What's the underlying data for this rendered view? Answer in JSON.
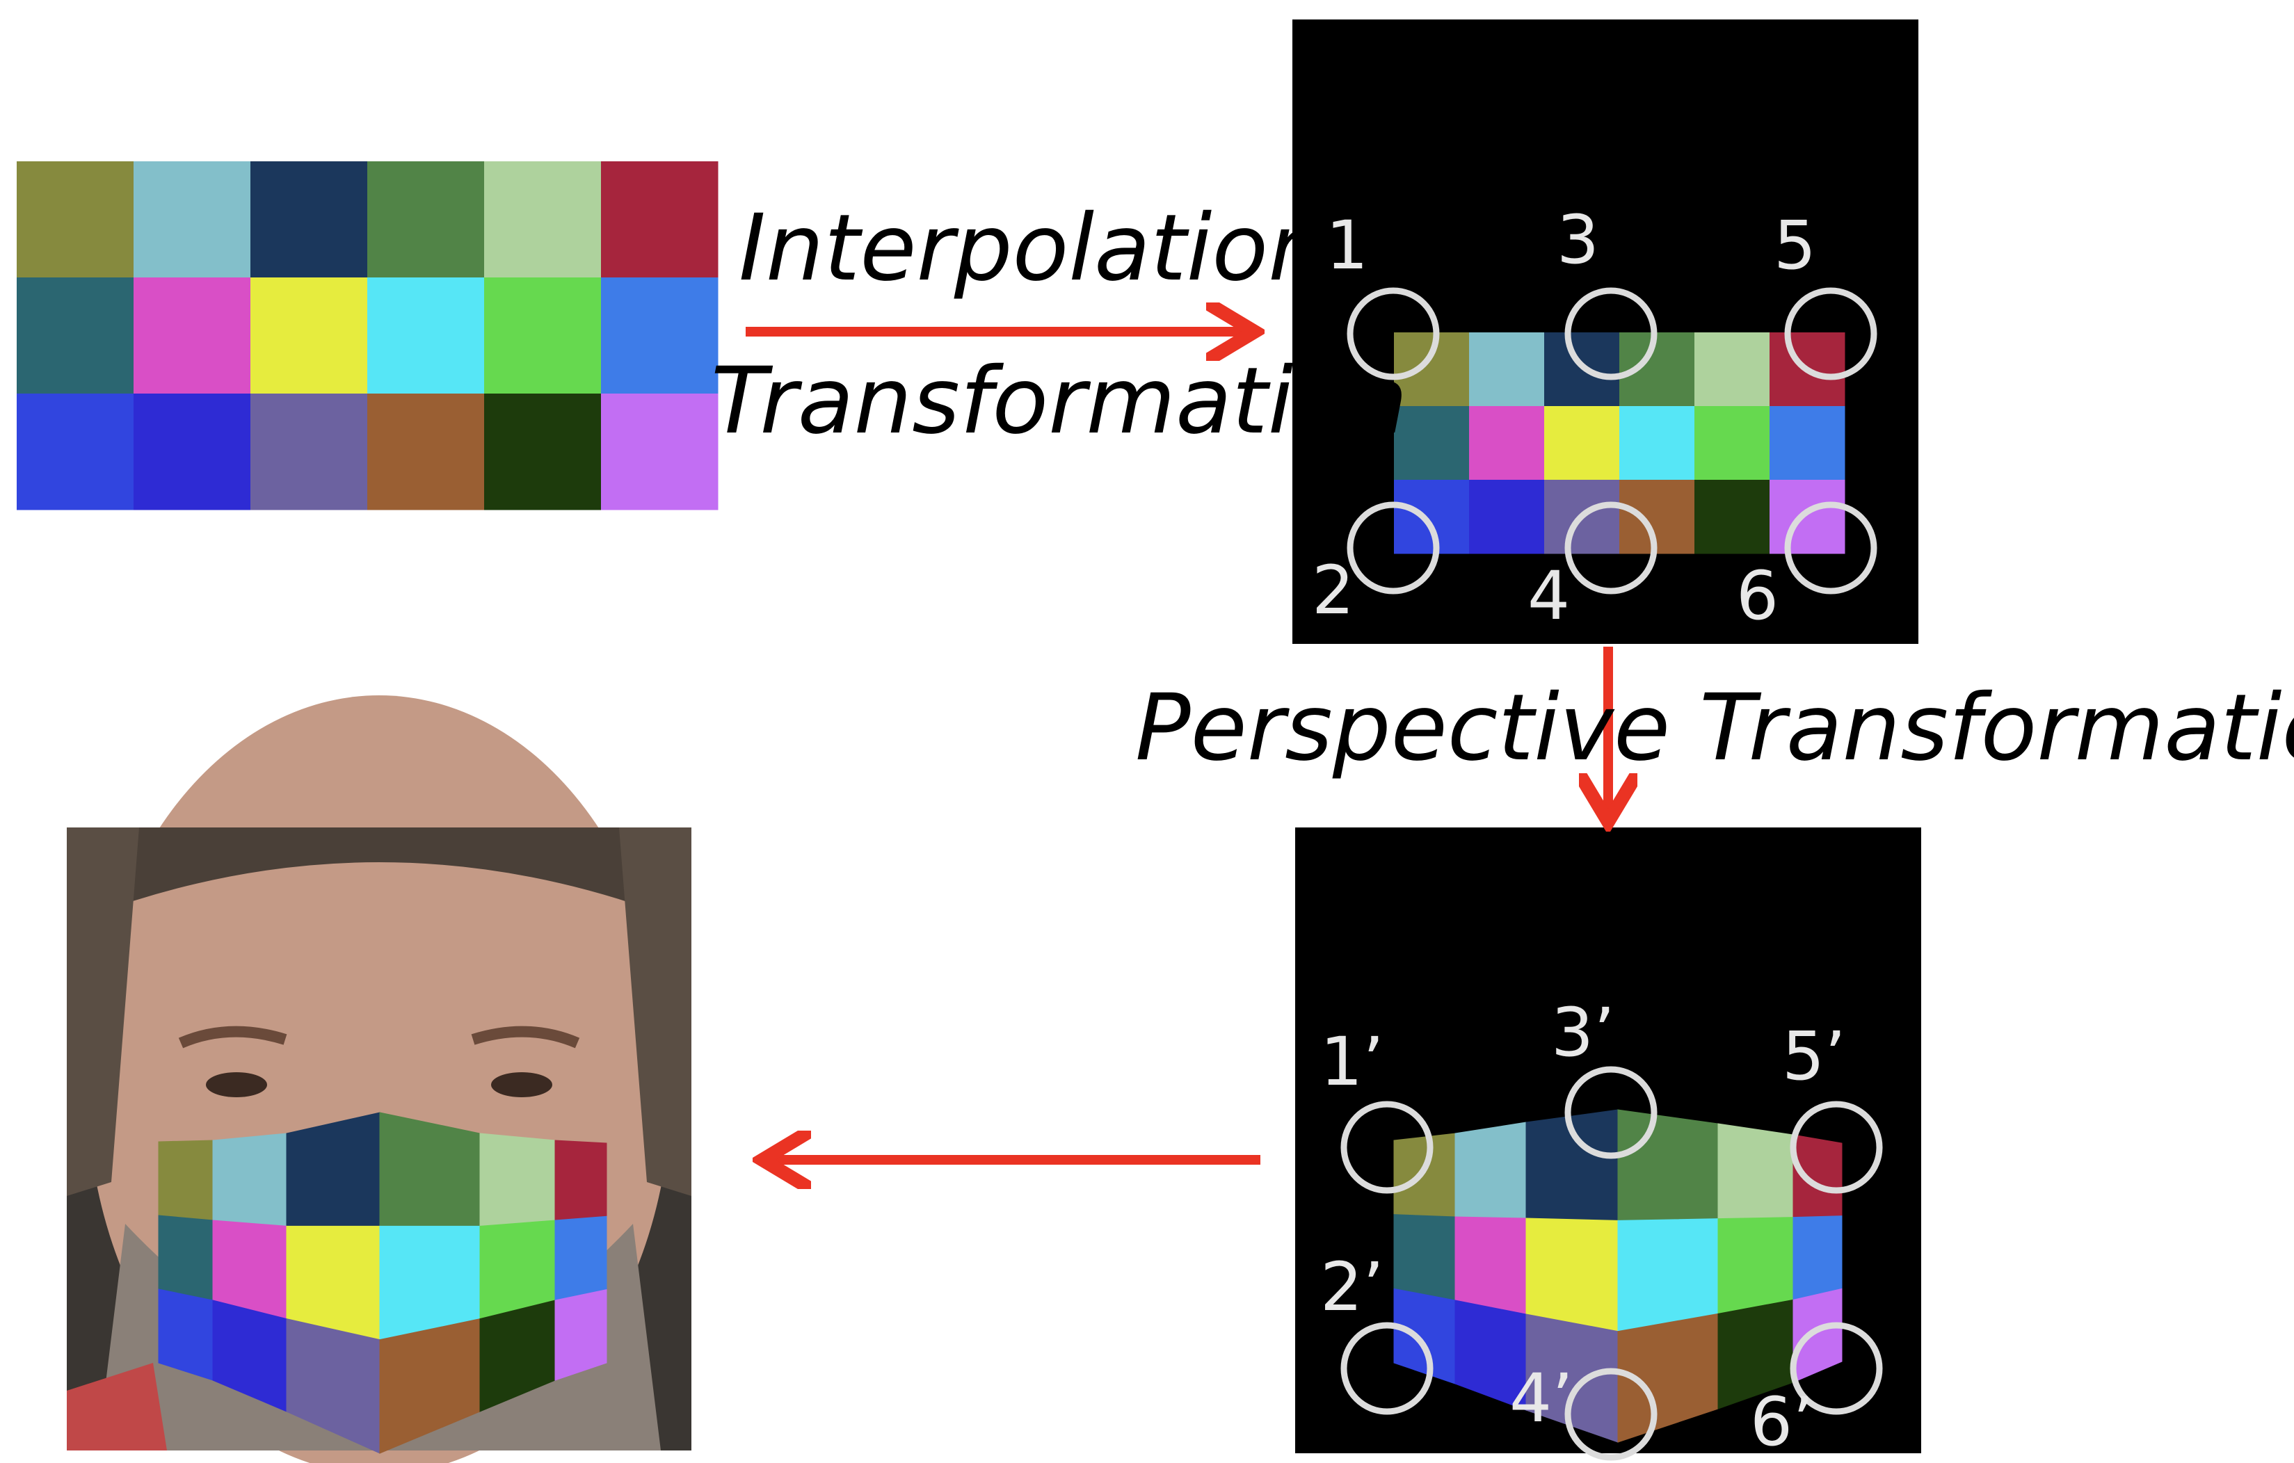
{
  "labels": {
    "interpolation": "Interpolation",
    "transformation": "Transformation",
    "perspective": "Perspective Transformation"
  },
  "points_top": [
    "1",
    "2",
    "3",
    "4",
    "5",
    "6"
  ],
  "points_bottom": [
    "1’",
    "2’",
    "3’",
    "4’",
    "5’",
    "6’"
  ],
  "palette": [
    [
      "#868a3e",
      "#83bfca",
      "#1b375c",
      "#518447",
      "#aed29d",
      "#a6253d"
    ],
    [
      "#2b6671",
      "#d94fc6",
      "#e6ec3e",
      "#56e6f6",
      "#66d94f",
      "#3e7ce8"
    ],
    [
      "#3145df",
      "#2e2bd4",
      "#6c62a0",
      "#9a5f33",
      "#1d3b0c",
      "#c26ef3"
    ]
  ],
  "colors": {
    "arrow": "#ea3323",
    "panel": "#000000",
    "marker": "#dcdcdc",
    "skin": "#c49a86",
    "hair": "#4a4038",
    "beard": "#8a8078"
  }
}
